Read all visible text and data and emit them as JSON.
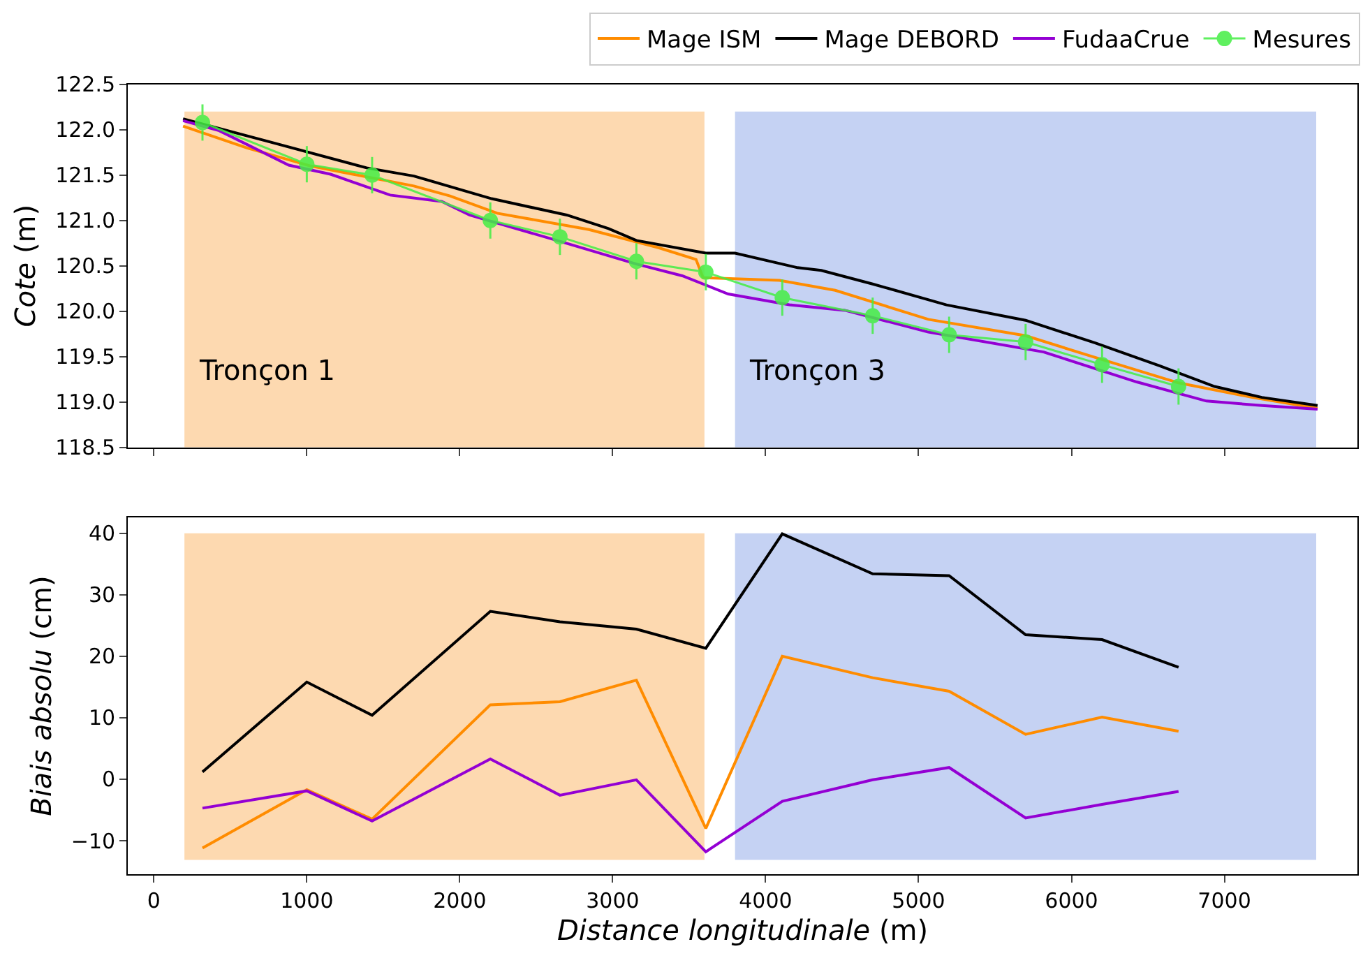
{
  "chart_data": [
    {
      "type": "line",
      "ylabel": "Cote (m)",
      "legend": "top right",
      "tick_labels": "y",
      "grid": false,
      "xlim": [
        -170,
        7870
      ],
      "xticks": [
        0,
        1000,
        2000,
        3000,
        4000,
        5000,
        6000,
        7000
      ],
      "ylim": [
        118.5,
        122.5
      ],
      "yticks": [
        118.5,
        {
          "value": 119,
          "label": "119.0"
        },
        119.5,
        {
          "value": 120,
          "label": "120.0"
        },
        120.5,
        {
          "value": 121,
          "label": "121.0"
        },
        121.5,
        {
          "value": 122,
          "label": "122.0"
        },
        122.5
      ],
      "bands": [
        {
          "axis": "x",
          "from": 200,
          "to": 3600,
          "label": "Tronçon 1",
          "color": "#fdd9b0"
        },
        {
          "axis": "x",
          "from": 3800,
          "to": 7600,
          "label": "Tronçon 3",
          "color": "#c5d2f3"
        }
      ],
      "series": [
        {
          "name": "Mage ISM",
          "color": "#ff8c00",
          "x": [
            191,
            609,
            1027,
            1700,
            1936,
            2245,
            2845,
            3300,
            3545,
            3591,
            4091,
            4455,
            5064,
            5700,
            6155,
            6700,
            7182,
            7609
          ],
          "values": [
            122.04,
            121.8,
            121.6,
            121.38,
            121.27,
            121.08,
            120.9,
            120.7,
            120.57,
            120.37,
            120.34,
            120.23,
            119.91,
            119.73,
            119.49,
            119.21,
            119.05,
            118.93
          ]
        },
        {
          "name": "Mage DEBORD",
          "color": "#000000",
          "x": [
            191,
            727,
            1391,
            1700,
            2209,
            2700,
            2973,
            3155,
            3609,
            3800,
            4209,
            4364,
            4700,
            5182,
            5700,
            6155,
            6573,
            6936,
            7245,
            7609
          ],
          "values": [
            122.12,
            121.88,
            121.58,
            121.49,
            121.24,
            121.06,
            120.91,
            120.78,
            120.64,
            120.64,
            120.48,
            120.45,
            120.3,
            120.07,
            119.9,
            119.65,
            119.4,
            119.17,
            119.05,
            118.96
          ]
        },
        {
          "name": "FudaaCrue",
          "color": "#9400d3",
          "x": [
            191,
            427,
            882,
            1155,
            1545,
            1882,
            2064,
            2636,
            3155,
            3455,
            3755,
            4155,
            4518,
            5064,
            5818,
            6427,
            6882,
            7245,
            7609
          ],
          "values": [
            122.1,
            121.99,
            121.61,
            121.51,
            121.28,
            121.21,
            121.06,
            120.78,
            120.52,
            120.39,
            120.19,
            120.07,
            120.01,
            119.77,
            119.55,
            119.22,
            119.01,
            118.96,
            118.92
          ]
        },
        {
          "name": "Mesures",
          "color": "#44ee44",
          "marker": "circle",
          "x": [
            318,
            1000,
            1427,
            2200,
            2655,
            3155,
            3609,
            4109,
            4700,
            5200,
            5700,
            6200,
            6700
          ],
          "values": [
            122.08,
            121.62,
            121.5,
            121.0,
            120.82,
            120.55,
            120.43,
            120.15,
            119.95,
            119.74,
            119.66,
            119.41,
            119.17
          ],
          "errors": [
            0.2,
            0.2,
            0.2,
            0.2,
            0.2,
            0.2,
            0.2,
            0.2,
            0.2,
            0.2,
            0.2,
            0.2,
            0.2
          ]
        }
      ]
    },
    {
      "type": "line",
      "ylabel": "Biais absolu (cm)",
      "xlabel": "Distance longitudinale (m)",
      "grid": false,
      "xlim": [
        -170,
        7870
      ],
      "xticks": [
        0,
        1000,
        2000,
        3000,
        4000,
        5000,
        6000,
        7000
      ],
      "ylim": [
        -15.5,
        42.6
      ],
      "yticks": [
        {
          "value": -10,
          "label": "−10"
        },
        0,
        10,
        20,
        30,
        40
      ],
      "bands": [
        {
          "axis": "x",
          "from": 200,
          "to": 3600,
          "color": "#fdd9b0"
        },
        {
          "axis": "x",
          "from": 3800,
          "to": 7600,
          "color": "#c5d2f3"
        }
      ],
      "x": [
        318,
        1000,
        1427,
        2200,
        2655,
        3155,
        3609,
        4109,
        4700,
        5200,
        5700,
        6200,
        6700
      ],
      "series": [
        {
          "color": "#ff8c00",
          "values": [
            -11.2,
            -1.7,
            -6.5,
            12.1,
            12.6,
            16.1,
            -8.0,
            20.0,
            16.5,
            14.3,
            7.3,
            10.1,
            7.8
          ]
        },
        {
          "color": "#000000",
          "values": [
            1.2,
            15.8,
            10.4,
            27.3,
            25.6,
            24.4,
            21.3,
            39.9,
            33.4,
            33.1,
            23.5,
            22.7,
            18.2
          ]
        },
        {
          "color": "#9400d3",
          "values": [
            -4.7,
            -1.9,
            -6.8,
            3.3,
            -2.6,
            -0.1,
            -11.8,
            -3.6,
            -0.1,
            1.9,
            -6.3,
            -4.1,
            -2.0
          ]
        }
      ]
    }
  ]
}
